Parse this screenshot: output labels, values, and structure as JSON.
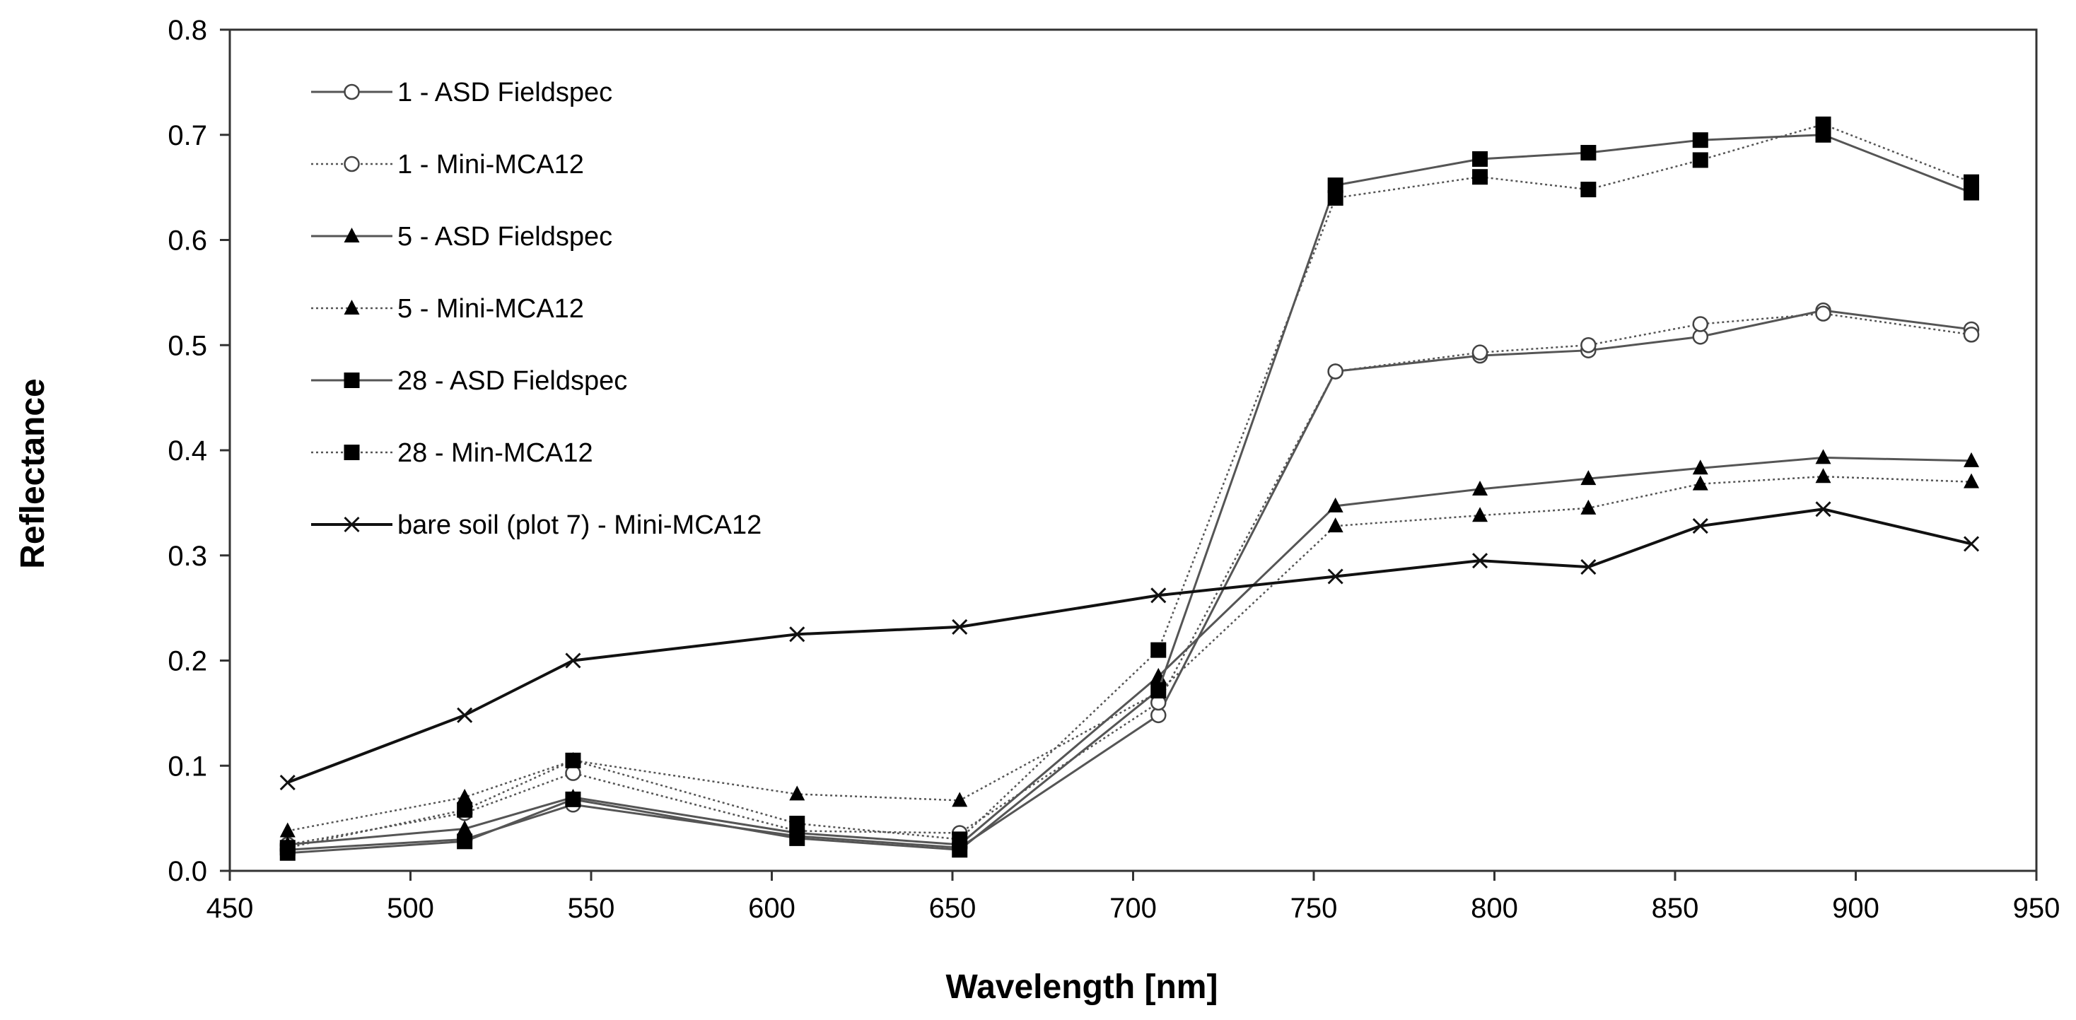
{
  "chart_data": {
    "type": "line",
    "title": "",
    "xlabel": "Wavelength [nm]",
    "ylabel": "Reflectance",
    "xlim": [
      450,
      950
    ],
    "ylim": [
      0,
      0.8
    ],
    "xticks": [
      450,
      500,
      550,
      600,
      650,
      700,
      750,
      800,
      850,
      900,
      950
    ],
    "yticks": [
      "0.0",
      "0.1",
      "0.2",
      "0.3",
      "0.4",
      "0.5",
      "0.6",
      "0.7",
      "0.8"
    ],
    "grid": false,
    "legend_position": "top-left",
    "x": [
      466,
      515,
      545,
      607,
      652,
      707,
      756,
      796,
      826,
      857,
      891,
      932
    ],
    "series": [
      {
        "name": "1 - ASD Fieldspec",
        "marker": "open-circle",
        "line": "solid",
        "values": [
          0.02,
          0.03,
          0.063,
          0.033,
          0.022,
          0.148,
          0.475,
          0.49,
          0.495,
          0.508,
          0.533,
          0.515
        ]
      },
      {
        "name": "1 - Mini-MCA12",
        "marker": "open-circle",
        "line": "dotted",
        "values": [
          0.025,
          0.055,
          0.093,
          0.038,
          0.036,
          0.16,
          0.475,
          0.493,
          0.5,
          0.52,
          0.53,
          0.51
        ]
      },
      {
        "name": "5 - ASD Fieldspec",
        "marker": "filled-triangle",
        "line": "solid",
        "values": [
          0.025,
          0.04,
          0.07,
          0.036,
          0.025,
          0.185,
          0.347,
          0.363,
          0.373,
          0.383,
          0.393,
          0.39
        ]
      },
      {
        "name": "5 - Mini-MCA12",
        "marker": "filled-triangle",
        "line": "dotted",
        "values": [
          0.038,
          0.07,
          0.105,
          0.073,
          0.067,
          0.17,
          0.328,
          0.338,
          0.345,
          0.368,
          0.375,
          0.37
        ]
      },
      {
        "name": "28 - ASD Fieldspec",
        "marker": "filled-square",
        "line": "solid",
        "values": [
          0.017,
          0.028,
          0.068,
          0.031,
          0.02,
          0.172,
          0.652,
          0.677,
          0.683,
          0.695,
          0.7,
          0.645
        ]
      },
      {
        "name": "28 - Min-MCA12",
        "marker": "filled-square",
        "line": "dotted",
        "values": [
          0.022,
          0.058,
          0.105,
          0.045,
          0.03,
          0.21,
          0.64,
          0.66,
          0.648,
          0.676,
          0.71,
          0.655
        ]
      },
      {
        "name": "bare soil (plot 7) - Mini-MCA12",
        "marker": "cross",
        "line": "solid-dark",
        "values": [
          0.084,
          0.148,
          0.2,
          0.225,
          0.232,
          0.262,
          0.28,
          0.295,
          0.289,
          0.328,
          0.344,
          0.311
        ]
      }
    ]
  }
}
